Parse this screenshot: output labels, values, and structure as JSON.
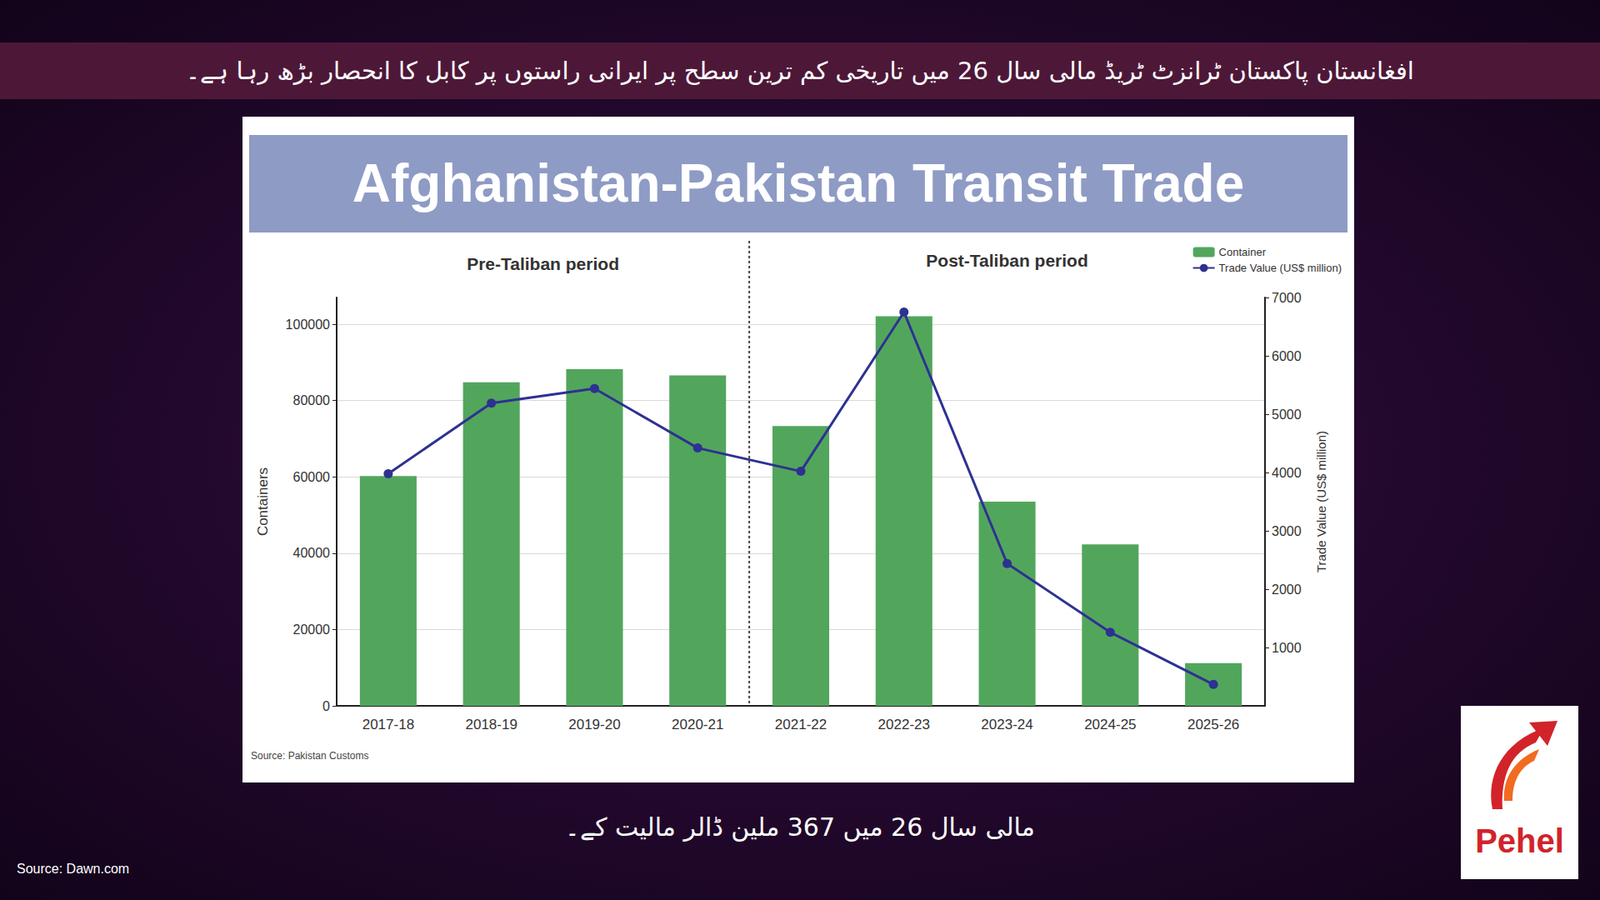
{
  "header": "افغانستان پاکستان ٹرانزٹ ٹریڈ مالی سال 26 میں تاریخی کم ترین سطح پر ایرانی راستوں پر کابل کا انحصار بڑھ رہا ہے۔",
  "caption": "مالی سال 26 میں 367 ملین ڈالر مالیت کے۔",
  "source": "Source: Dawn.com",
  "logo": "Pehel",
  "chart_data": {
    "type": "bar",
    "title": "Afghanistan-Pakistan Transit Trade",
    "annotations": [
      "Pre-Taliban period",
      "Post-Taliban period"
    ],
    "source": "Source: Pakistan Customs",
    "categories": [
      "2017-18",
      "2018-19",
      "2019-20",
      "2020-21",
      "2021-22",
      "2022-23",
      "2023-24",
      "2024-25",
      "2025-26"
    ],
    "ylabel": "Containers",
    "y2label": "Trade Value (US$ million)",
    "ylim": [
      0,
      107000
    ],
    "yticks": [
      0,
      20000,
      40000,
      60000,
      80000,
      100000
    ],
    "y2lim": [
      0,
      7000
    ],
    "y2ticks": [
      1000,
      2000,
      3000,
      4000,
      5000,
      6000,
      7000
    ],
    "grid": true,
    "legend": "top-right",
    "series": [
      {
        "name": "Container",
        "type": "bar",
        "color": "#52a65c",
        "values": [
          60200,
          84800,
          88200,
          86600,
          73300,
          102100,
          53500,
          42300,
          11200
        ]
      },
      {
        "name": "Trade Value (US$ million)",
        "type": "line",
        "axis": "y2",
        "color": "#2e3192",
        "marker": "circle",
        "line_style": "solid",
        "values": [
          3980,
          5190,
          5440,
          4420,
          4020,
          6750,
          2440,
          1260,
          367
        ]
      }
    ]
  }
}
